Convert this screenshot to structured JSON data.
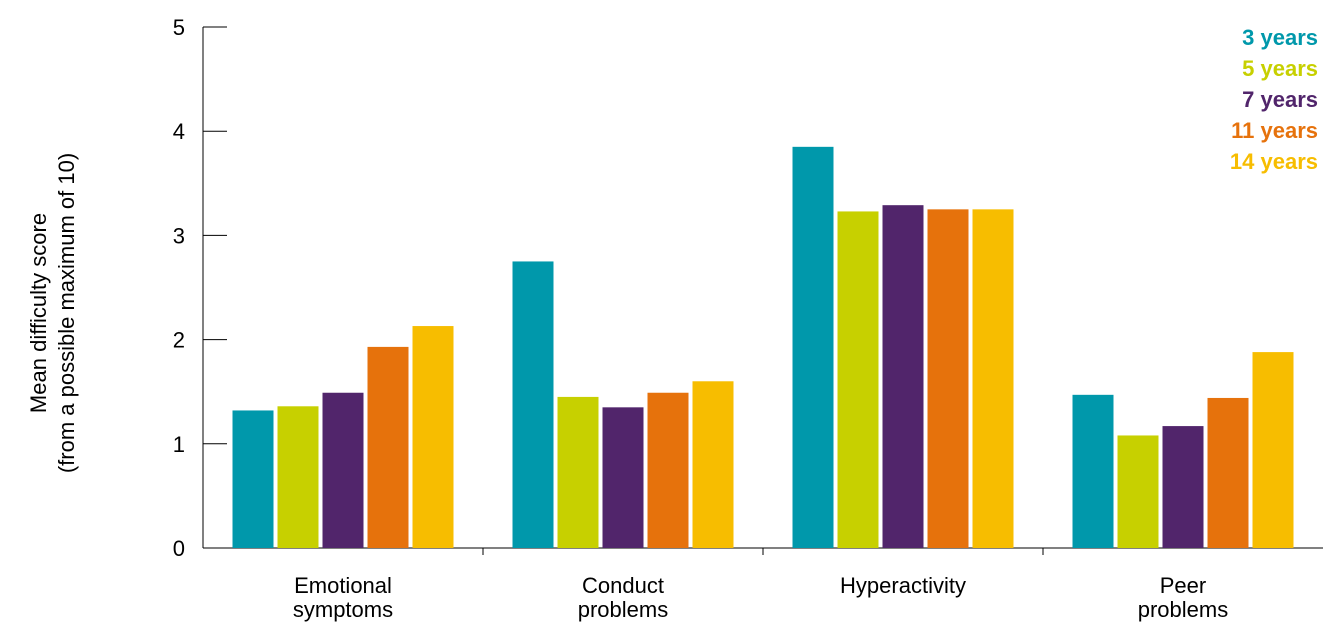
{
  "chart_data": {
    "type": "bar",
    "title": "",
    "xlabel": "",
    "ylabel": "Mean difficulty score",
    "ylabel_sub": "(from a possible maximum of 10)",
    "ylim": [
      0,
      5
    ],
    "yticks": [
      0,
      1,
      2,
      3,
      4,
      5
    ],
    "grid": false,
    "legend_position": "top-right",
    "categories": [
      [
        "Emotional",
        "symptoms"
      ],
      [
        "Conduct",
        "problems"
      ],
      [
        "Hyperactivity"
      ],
      [
        "Peer",
        "problems"
      ]
    ],
    "series": [
      {
        "name": "3 years",
        "color": "#0098ab",
        "values": [
          1.32,
          2.75,
          3.85,
          1.47
        ]
      },
      {
        "name": "5 years",
        "color": "#c7d000",
        "values": [
          1.36,
          1.45,
          3.23,
          1.08
        ]
      },
      {
        "name": "7 years",
        "color": "#51256b",
        "values": [
          1.49,
          1.35,
          3.29,
          1.17
        ]
      },
      {
        "name": "11 years",
        "color": "#e6720c",
        "values": [
          1.93,
          1.49,
          3.25,
          1.44
        ]
      },
      {
        "name": "14 years",
        "color": "#f7bd00",
        "values": [
          2.13,
          1.6,
          3.25,
          1.88
        ]
      }
    ]
  }
}
